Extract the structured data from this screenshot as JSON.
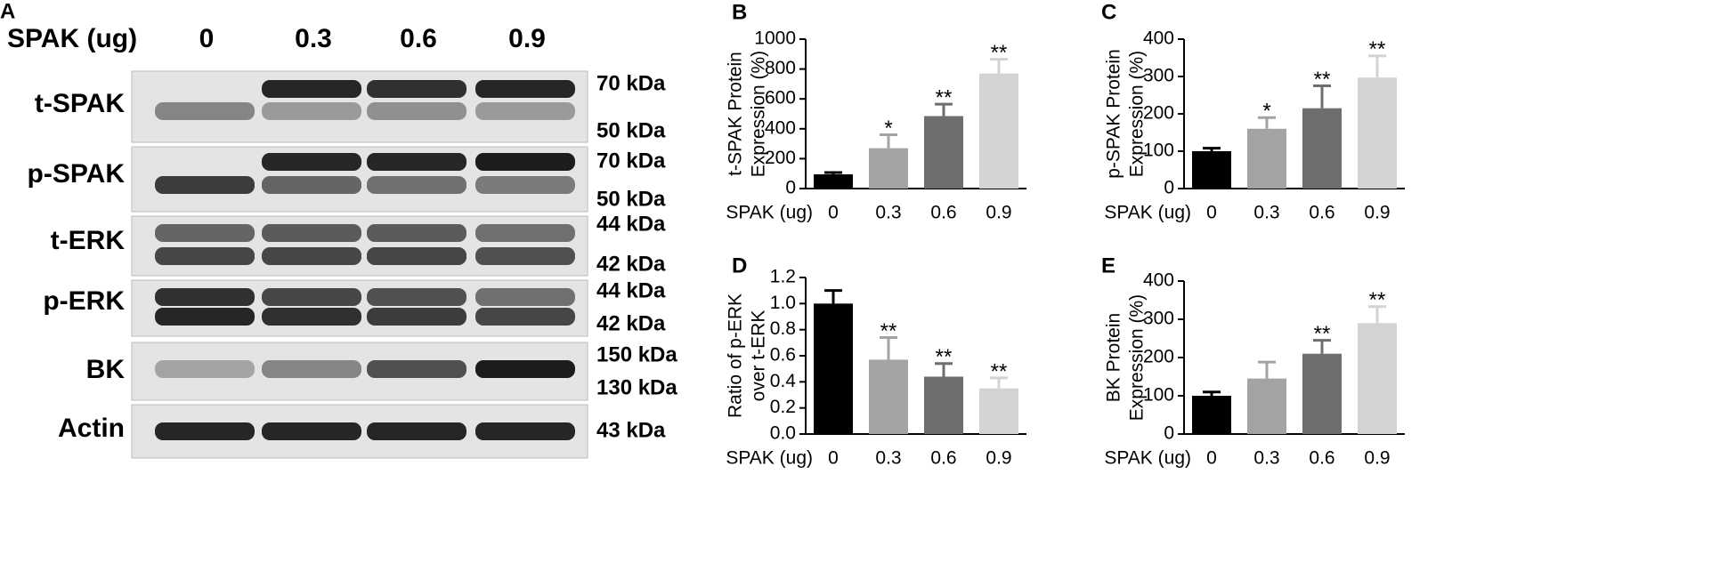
{
  "blot": {
    "label": "A",
    "x_label": "SPAK (ug)",
    "lanes": [
      "0",
      "0.3",
      "0.6",
      "0.9"
    ],
    "rows": [
      {
        "name": "t-SPAK",
        "sizes": [
          "70 kDa",
          "50 kDa"
        ]
      },
      {
        "name": "p-SPAK",
        "sizes": [
          "70 kDa",
          "50 kDa"
        ]
      },
      {
        "name": "t-ERK",
        "sizes": [
          "44 kDa",
          "42 kDa"
        ]
      },
      {
        "name": "p-ERK",
        "sizes": [
          "44 kDa",
          "42 kDa"
        ]
      },
      {
        "name": "BK",
        "sizes": [
          "150 kDa",
          "130 kDa"
        ]
      },
      {
        "name": "Actin",
        "sizes": [
          "43 kDa"
        ]
      }
    ]
  },
  "chart_data": [
    {
      "type": "bar",
      "label": "B",
      "ylabel": [
        "t-SPAK Protein",
        "Expression (%)"
      ],
      "xlabel": "SPAK (ug)",
      "categories": [
        "0",
        "0.3",
        "0.6",
        "0.9"
      ],
      "values": [
        95,
        270,
        485,
        770
      ],
      "errors": [
        12,
        90,
        80,
        95
      ],
      "annotations": [
        null,
        "*",
        "**",
        "**"
      ],
      "colors": [
        "#000000",
        "#a3a3a3",
        "#6e6e6e",
        "#d3d3d3"
      ],
      "ylim": [
        0,
        1000
      ],
      "yticks": [
        0,
        200,
        400,
        600,
        800,
        1000
      ]
    },
    {
      "type": "bar",
      "label": "C",
      "ylabel": [
        "p-SPAK Protein",
        "Expression (%)"
      ],
      "xlabel": "SPAK (ug)",
      "categories": [
        "0",
        "0.3",
        "0.6",
        "0.9"
      ],
      "values": [
        100,
        160,
        215,
        297
      ],
      "errors": [
        8,
        30,
        60,
        58
      ],
      "annotations": [
        null,
        "*",
        "**",
        "**"
      ],
      "colors": [
        "#000000",
        "#a3a3a3",
        "#6e6e6e",
        "#d3d3d3"
      ],
      "ylim": [
        0,
        400
      ],
      "yticks": [
        0,
        100,
        200,
        300,
        400
      ]
    },
    {
      "type": "bar",
      "label": "D",
      "ylabel": [
        "Ratio of p-ERK",
        "over t-ERK"
      ],
      "xlabel": "SPAK (ug)",
      "categories": [
        "0",
        "0.3",
        "0.6",
        "0.9"
      ],
      "values": [
        1.0,
        0.57,
        0.44,
        0.35
      ],
      "errors": [
        0.1,
        0.17,
        0.1,
        0.08
      ],
      "annotations": [
        null,
        "**",
        "**",
        "**"
      ],
      "colors": [
        "#000000",
        "#a3a3a3",
        "#6e6e6e",
        "#d3d3d3"
      ],
      "ylim": [
        0,
        1.2
      ],
      "yticks": [
        {
          "value": 0,
          "label": "0.0"
        },
        0.2,
        0.4,
        0.6,
        0.8,
        {
          "value": 1,
          "label": "1.0"
        },
        1.2
      ]
    },
    {
      "type": "bar",
      "label": "E",
      "ylabel": [
        "BK Protein",
        "Expression (%)"
      ],
      "xlabel": "SPAK (ug)",
      "categories": [
        "0",
        "0.3",
        "0.6",
        "0.9"
      ],
      "values": [
        100,
        145,
        210,
        290
      ],
      "errors": [
        10,
        43,
        35,
        43
      ],
      "annotations": [
        null,
        null,
        "**",
        "**"
      ],
      "colors": [
        "#000000",
        "#a3a3a3",
        "#6e6e6e",
        "#d3d3d3"
      ],
      "ylim": [
        0,
        400
      ],
      "yticks": [
        0,
        100,
        200,
        300,
        400
      ]
    }
  ]
}
